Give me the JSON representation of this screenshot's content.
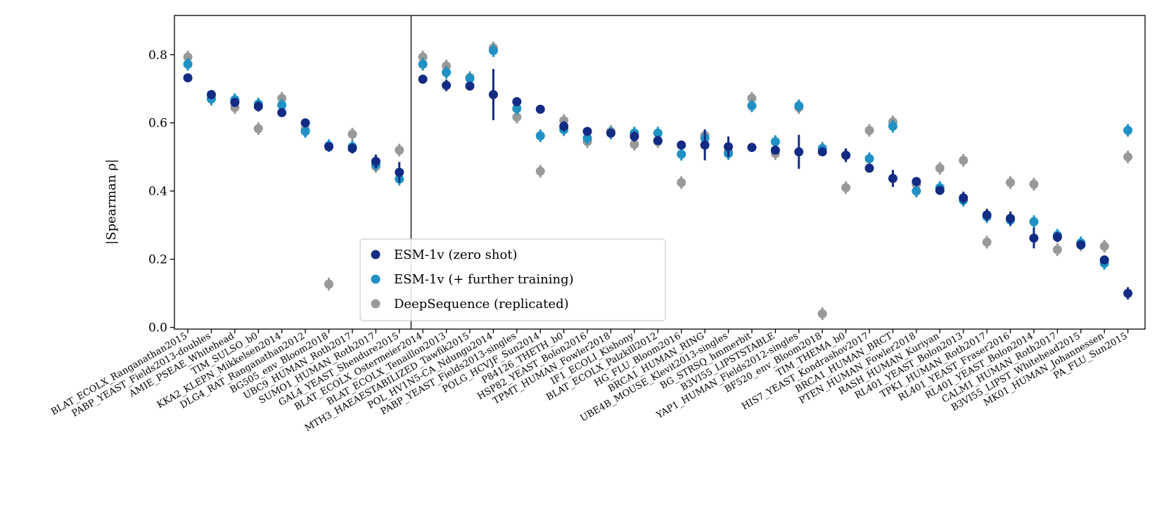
{
  "chart_data": {
    "type": "scatter",
    "ylabel": "|Spearman ρ|",
    "xlabel": "",
    "ylim": [
      -0.005,
      0.915
    ],
    "yticks": [
      "0.0",
      "0.2",
      "0.4",
      "0.6",
      "0.8"
    ],
    "grid": false,
    "legend_position": "lower-center",
    "divider_after_index": 9,
    "categories": [
      "BLAT_ECOLX_Ranganathan2015",
      "PABP_YEAST_Fields2013-doubles",
      "AMIE_PSEAE_Whitehead",
      "TIM_SULSO_b0",
      "KKA2_KLEPN_Mikkelsen2014",
      "DLG4_RAT_Ranganathan2012",
      "BG505_env_Bloom2018",
      "UBC9_HUMAN_Roth2017",
      "SUMO1_HUMAN_Roth2017",
      "GAL4_YEAST_Shendure2015",
      "BLAT_ECOLX_Ostermeier2014",
      "BLAT_ECOLX_Tenaillon2013",
      "MTH3_HAEAESTABILIZED_Tawfik2015",
      "POL_HV1N5-CA_Ndungu2014",
      "PABP_YEAST_Fields2013-singles",
      "POLG_HCVJF_Sun2014",
      "P84126_THETH_b0",
      "HSP82_YEAST_Bolon2016",
      "TPMT_HUMAN_Fowler2018",
      "IF1_ECOLI_Kishony",
      "BLAT_ECOLX_Palzkill2012",
      "HG_FLU_Bloom2016",
      "BRCA1_HUMAN_RING",
      "UBE4B_MOUSE_Klevit2013-singles",
      "BG_STRSQ_hmmerbit",
      "B3VI55_LIPSTSTABLE",
      "YAP1_HUMAN_Fields2012-singles",
      "BF520_env_Bloom2018",
      "TIM_THEMA_b0",
      "HIS7_YEAST_Kondrashov2017",
      "BRCA1_HUMAN_BRCT",
      "PTEN_HUMAN_Fowler2018",
      "RASH_HUMAN_Kuriyan",
      "RL401_YEAST_Bolon2013",
      "TPK1_HUMAN_Roth2017",
      "RL401_YEAST_Fraser2016",
      "RL401_YEAST_Bolon2014",
      "CALM1_HUMAN_Roth2017",
      "B3VI55_LIPST_Whitehead2015",
      "MK01_HUMAN_Johannessen",
      "PA_FLU_Sun2015"
    ],
    "series": [
      {
        "name": "ESM-1v (zero shot)",
        "color": "#132b84",
        "values": [
          0.732,
          0.683,
          0.66,
          0.648,
          0.63,
          0.6,
          0.53,
          0.525,
          0.487,
          0.455,
          0.728,
          0.71,
          0.708,
          0.683,
          0.662,
          0.64,
          0.59,
          0.575,
          0.57,
          0.56,
          0.548,
          0.535,
          0.535,
          0.53,
          0.528,
          0.52,
          0.515,
          0.515,
          0.505,
          0.467,
          0.437,
          0.428,
          0.402,
          0.38,
          0.33,
          0.32,
          0.262,
          0.265,
          0.242,
          0.198,
          0.1
        ],
        "errors": [
          0.006,
          0.008,
          0.012,
          0.015,
          0.01,
          0.01,
          0.01,
          0.015,
          0.02,
          0.03,
          0.006,
          0.017,
          0.01,
          0.075,
          0.012,
          0.008,
          0.015,
          0.01,
          0.008,
          0.015,
          0.008,
          0.008,
          0.045,
          0.03,
          0.005,
          0.008,
          0.05,
          0.01,
          0.02,
          0.008,
          0.025,
          0.008,
          0.008,
          0.018,
          0.018,
          0.02,
          0.03,
          0.015,
          0.01,
          0.01,
          0.018
        ]
      },
      {
        "name": "ESM-1v (+ further training)",
        "color": "#1f91c4",
        "values": [
          0.772,
          0.67,
          0.668,
          0.655,
          0.652,
          0.575,
          0.533,
          0.53,
          0.478,
          0.435,
          0.772,
          0.748,
          0.73,
          0.812,
          0.642,
          0.562,
          0.58,
          0.555,
          0.57,
          0.57,
          0.57,
          0.508,
          0.555,
          0.51,
          0.65,
          0.545,
          0.65,
          0.525,
          0.505,
          0.495,
          0.59,
          0.4,
          0.41,
          0.373,
          0.325,
          0.315,
          0.31,
          0.27,
          0.248,
          0.188,
          0.578
        ]
      },
      {
        "name": "DeepSequence (replicated)",
        "color": "#999999",
        "values": [
          0.793,
          0.672,
          0.645,
          0.583,
          0.672,
          0.58,
          0.127,
          0.567,
          0.472,
          0.52,
          0.793,
          0.767,
          0.733,
          0.82,
          0.617,
          0.458,
          0.607,
          0.545,
          0.575,
          0.537,
          0.545,
          0.425,
          0.563,
          0.515,
          0.672,
          0.51,
          0.645,
          0.04,
          0.41,
          0.578,
          0.603,
          0.42,
          0.467,
          0.49,
          0.25,
          0.425,
          0.42,
          0.228,
          0.242,
          0.238,
          0.5
        ]
      }
    ]
  }
}
